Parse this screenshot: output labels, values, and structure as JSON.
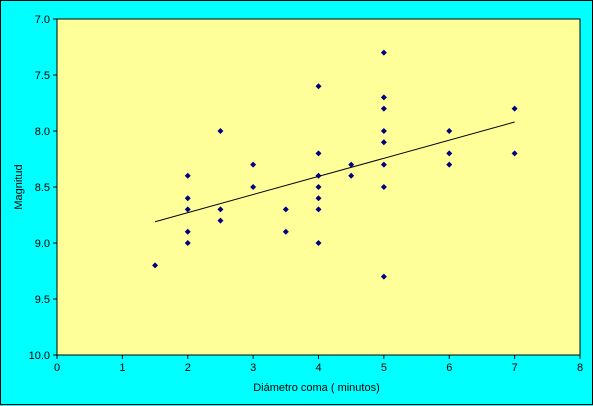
{
  "chart_data": {
    "type": "scatter",
    "xlabel": "Diámetro coma ( minutos)",
    "ylabel": "Magnitud",
    "xlim": [
      0,
      8
    ],
    "ylim": [
      7.0,
      10.0
    ],
    "y_inverted": true,
    "x_ticks": [
      "0",
      "1",
      "2",
      "3",
      "4",
      "5",
      "6",
      "7",
      "8"
    ],
    "y_ticks": [
      "7.0",
      "7.5",
      "8.0",
      "8.5",
      "9.0",
      "9.5",
      "10.0"
    ],
    "grid": false,
    "legend": "none",
    "points": [
      {
        "x": 1.5,
        "y": 9.2
      },
      {
        "x": 2.0,
        "y": 8.4
      },
      {
        "x": 2.0,
        "y": 8.6
      },
      {
        "x": 2.0,
        "y": 8.7
      },
      {
        "x": 2.0,
        "y": 8.9
      },
      {
        "x": 2.0,
        "y": 9.0
      },
      {
        "x": 2.5,
        "y": 8.0
      },
      {
        "x": 2.5,
        "y": 8.7
      },
      {
        "x": 2.5,
        "y": 8.8
      },
      {
        "x": 3.0,
        "y": 8.3
      },
      {
        "x": 3.0,
        "y": 8.5
      },
      {
        "x": 3.5,
        "y": 8.7
      },
      {
        "x": 3.5,
        "y": 8.9
      },
      {
        "x": 4.0,
        "y": 7.6
      },
      {
        "x": 4.0,
        "y": 8.2
      },
      {
        "x": 4.0,
        "y": 8.4
      },
      {
        "x": 4.0,
        "y": 8.5
      },
      {
        "x": 4.0,
        "y": 8.6
      },
      {
        "x": 4.0,
        "y": 8.7
      },
      {
        "x": 4.0,
        "y": 9.0
      },
      {
        "x": 4.5,
        "y": 8.3
      },
      {
        "x": 4.5,
        "y": 8.4
      },
      {
        "x": 5.0,
        "y": 7.3
      },
      {
        "x": 5.0,
        "y": 7.7
      },
      {
        "x": 5.0,
        "y": 7.8
      },
      {
        "x": 5.0,
        "y": 8.0
      },
      {
        "x": 5.0,
        "y": 8.1
      },
      {
        "x": 5.0,
        "y": 8.3
      },
      {
        "x": 5.0,
        "y": 8.5
      },
      {
        "x": 5.0,
        "y": 9.3
      },
      {
        "x": 6.0,
        "y": 8.0
      },
      {
        "x": 6.0,
        "y": 8.2
      },
      {
        "x": 6.0,
        "y": 8.3
      },
      {
        "x": 7.0,
        "y": 7.8
      },
      {
        "x": 7.0,
        "y": 8.2
      }
    ],
    "trendline": {
      "x": [
        1.5,
        7.0
      ],
      "y": [
        8.81,
        7.92
      ]
    },
    "colors": {
      "background": "#00FFFF",
      "plot_area": "#FFFF99",
      "marker": "#000080",
      "trendline": "#000000",
      "axis": "#000000"
    }
  }
}
